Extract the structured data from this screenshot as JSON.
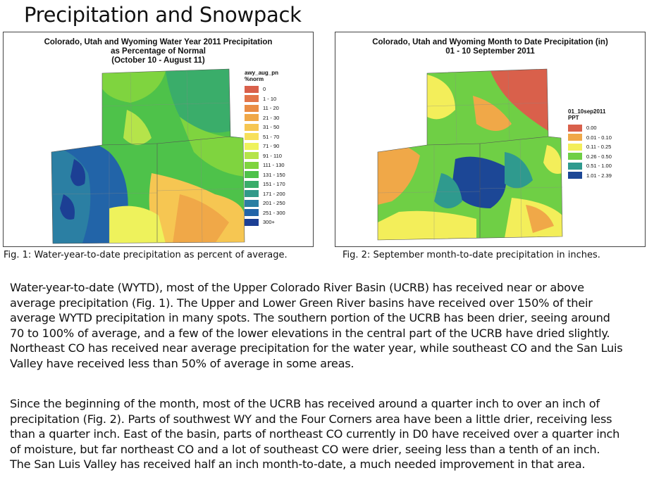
{
  "title": "Precipitation and Snowpack",
  "figures": [
    {
      "title_lines": [
        "Colorado, Utah and Wyoming Water Year 2011 Precipitation",
        "as Percentage of Normal",
        "(October 10 - August 11)"
      ],
      "legend_layer": "awy_aug_pn",
      "legend_unit": "%norm",
      "legend": [
        {
          "label": "0",
          "color": "#d9604b"
        },
        {
          "label": "1 - 10",
          "color": "#e2754a"
        },
        {
          "label": "11 - 20",
          "color": "#ea8d45"
        },
        {
          "label": "21 - 30",
          "color": "#f0a848"
        },
        {
          "label": "31 - 50",
          "color": "#f6c652"
        },
        {
          "label": "51 - 70",
          "color": "#f7e05a"
        },
        {
          "label": "71 - 90",
          "color": "#eef25c"
        },
        {
          "label": "91 - 110",
          "color": "#b5e44a"
        },
        {
          "label": "111 - 130",
          "color": "#7fd43f"
        },
        {
          "label": "131 - 150",
          "color": "#4ec24a"
        },
        {
          "label": "151 - 170",
          "color": "#3aad6a"
        },
        {
          "label": "171 - 200",
          "color": "#31998a"
        },
        {
          "label": "201 - 250",
          "color": "#2b7fa3"
        },
        {
          "label": "251 - 300",
          "color": "#2264a8"
        },
        {
          "label": "300+",
          "color": "#1c3f94"
        }
      ],
      "caption": "Fig. 1: Water-year-to-date precipitation as percent of average."
    },
    {
      "title_lines": [
        "Colorado, Utah and Wyoming Month to Date Precipitation (in)",
        "01 - 10 September 2011"
      ],
      "legend_layer": "01_10sep2011",
      "legend_unit": "PPT",
      "legend": [
        {
          "label": "0.00",
          "color": "#d9604b"
        },
        {
          "label": "0.01 - 0.10",
          "color": "#f0a848"
        },
        {
          "label": "0.11 - 0.25",
          "color": "#f3ee5a"
        },
        {
          "label": "0.26 - 0.50",
          "color": "#6fcf45"
        },
        {
          "label": "0.51 - 1.00",
          "color": "#2f9a8e"
        },
        {
          "label": "1.01 - 2.39",
          "color": "#1c4796"
        }
      ],
      "caption": "Fig. 2:  September month-to-date precipitation in inches."
    }
  ],
  "paragraphs": [
    [
      "Water-year-to-date (WYTD), most of the Upper Colorado River Basin (UCRB) has received near or above",
      "average precipitation (Fig. 1).  The Upper and Lower Green River basins have received over 150% of their",
      "average WYTD precipitation in many spots.  The southern portion of the UCRB has been drier, seeing around",
      "70 to 100% of average, and a few of the lower elevations in the central part of the UCRB have dried slightly.",
      "Northeast CO has received near average precipitation for the water year, while southeast CO and the San Luis",
      "Valley have received less than 50% of average in some areas."
    ],
    [
      "Since the beginning of the month, most of the UCRB has received around a quarter inch to over an inch of",
      "precipitation (Fig. 2).  Parts of southwest WY and the Four Corners area have been a little drier, receiving less",
      "than a quarter inch.  East of the basin, parts of northeast CO currently in D0 have received over a quarter inch",
      "of moisture, but far northeast CO and a lot of southeast CO were drier, seeing less than a tenth of an inch.",
      "The San Luis Valley has received half an inch month-to-date, a much needed improvement in that area."
    ]
  ]
}
